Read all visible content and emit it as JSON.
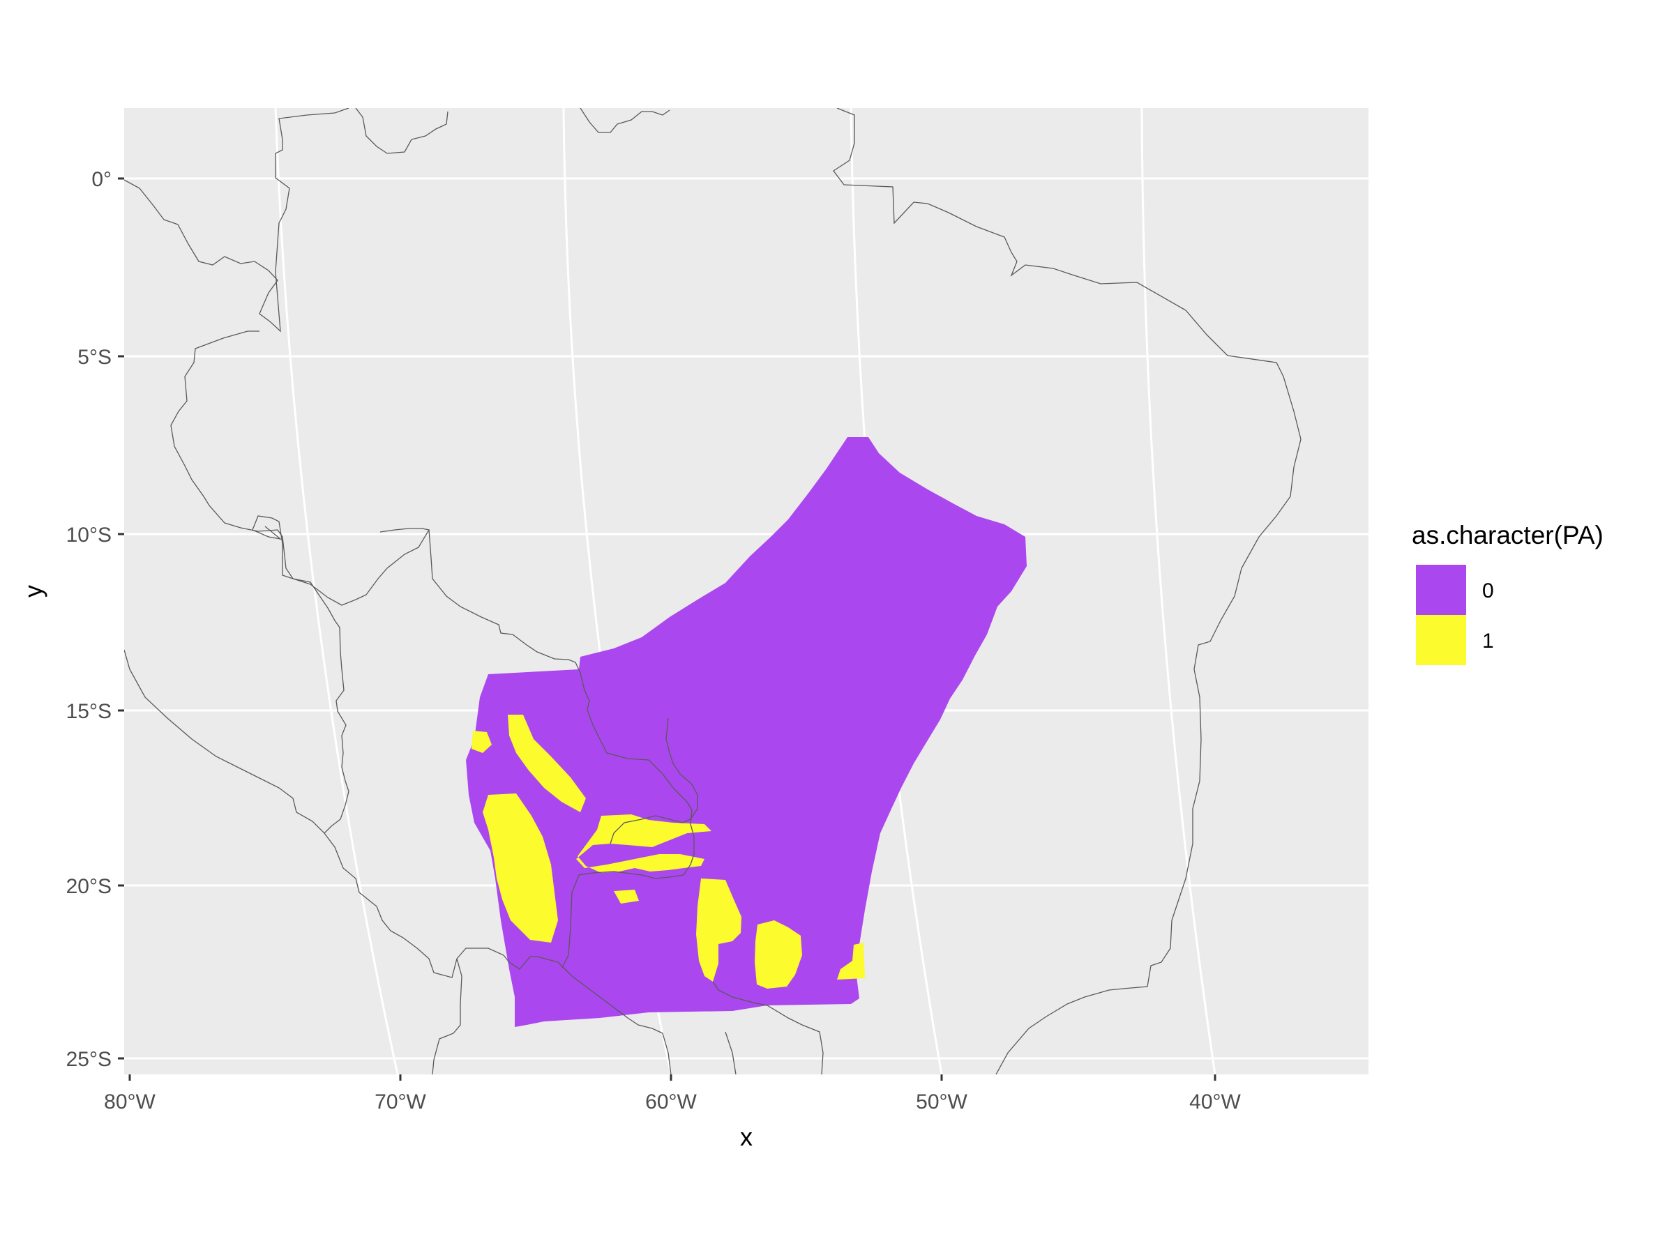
{
  "chart_data": {
    "type": "map",
    "xlabel": "x",
    "ylabel": "y",
    "x_ticks": [
      "80°W",
      "70°W",
      "60°W",
      "50°W",
      "40°W"
    ],
    "y_ticks": [
      "0°",
      "5°S",
      "10°S",
      "15°S",
      "20°S",
      "25°S"
    ],
    "xlim_lon": [
      -80.2,
      -34.2
    ],
    "ylim_lat": [
      2.0,
      -25.5
    ],
    "legend": {
      "title": "as.character(PA)",
      "position": "right",
      "entries": [
        {
          "label": "0",
          "color": "#AB47EE"
        },
        {
          "label": "1",
          "color": "#FBFB2E"
        }
      ]
    },
    "colors": {
      "panel_background": "#EBEBEB",
      "grid": "#FFFFFF",
      "borders": "#595959"
    }
  }
}
